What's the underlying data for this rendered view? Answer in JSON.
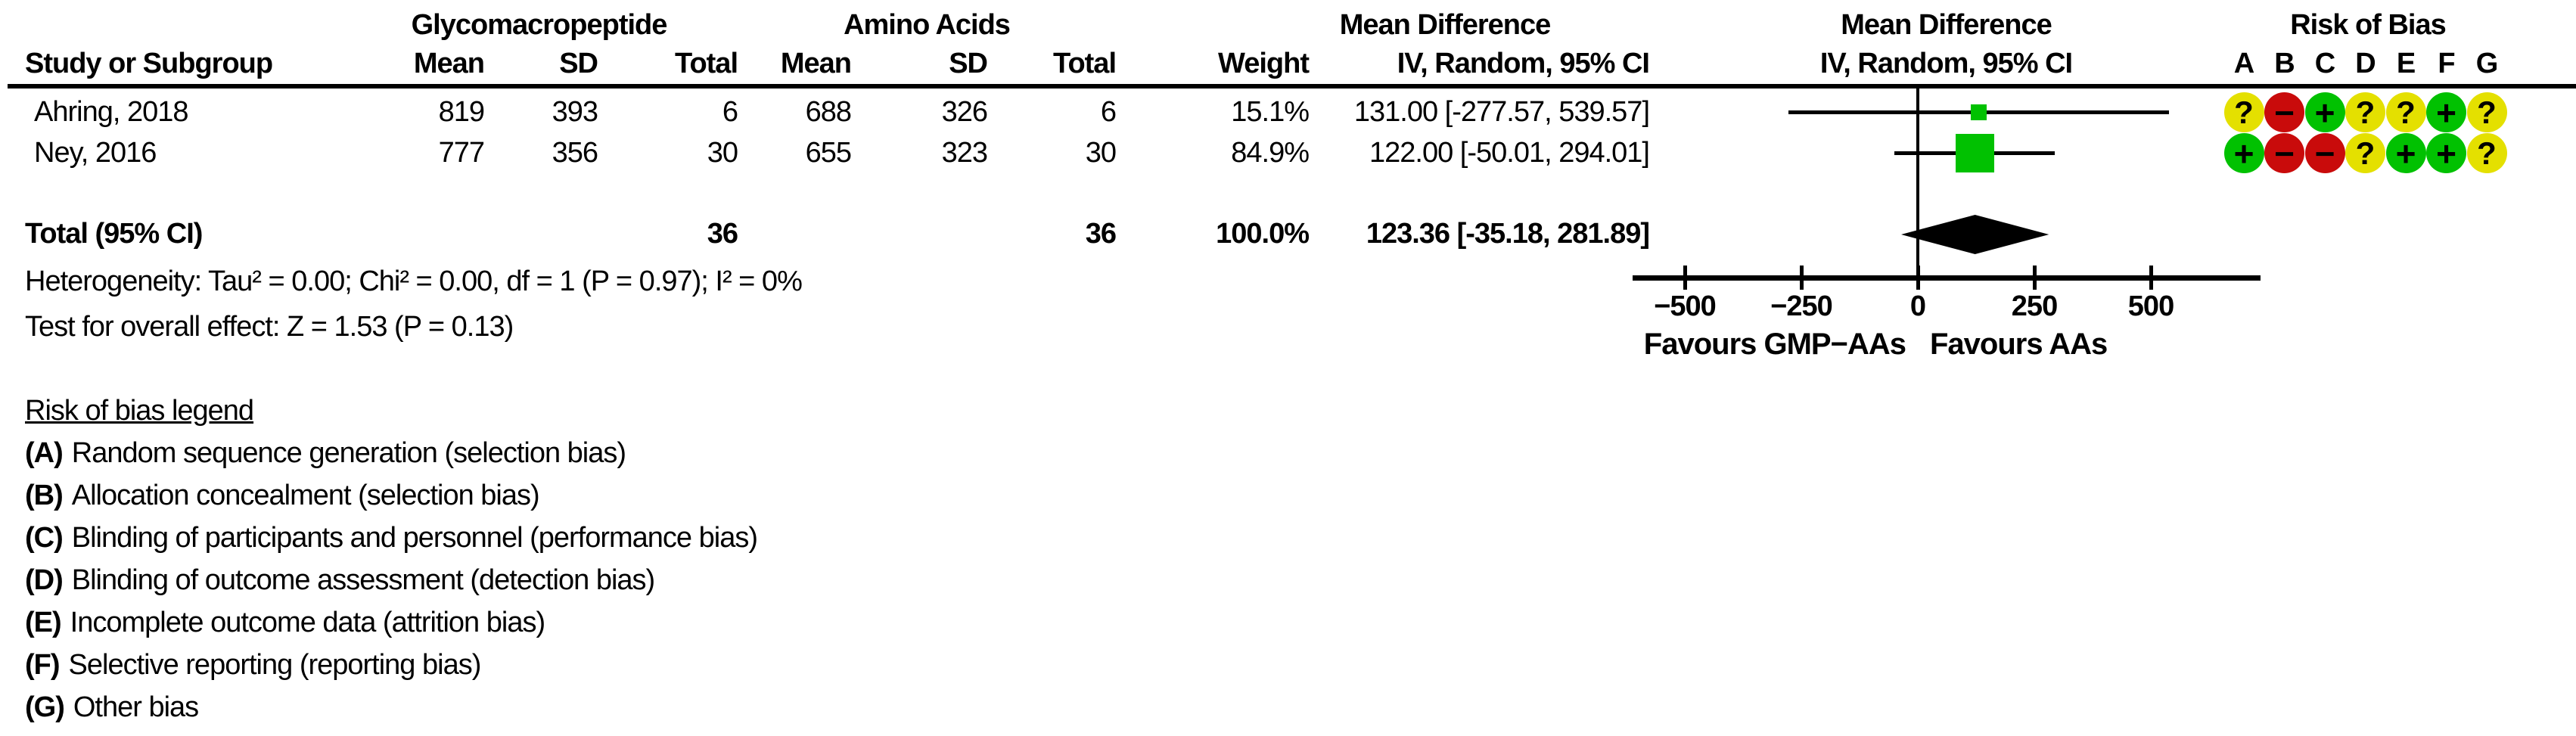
{
  "figure": {
    "colors": {
      "low_risk_green": "#01C101",
      "high_risk_red": "#C90B0B",
      "unclear_yellow": "#E4E000",
      "effect_square_green": "#01C101",
      "line_black": "#000000"
    }
  },
  "table": {
    "columns": {
      "study": "Study or Subgroup",
      "mean": "Mean",
      "sd": "SD",
      "total": "Total",
      "weight": "Weight",
      "ci": "IV, Random, 95% CI"
    },
    "group_headers": {
      "gmp": "Glycomacropeptide",
      "aa": "Amino Acids",
      "md_text": {
        "line1": "Mean Difference",
        "line2": "IV, Random, 95% CI"
      },
      "md_plot": {
        "line1": "Mean Difference",
        "line2": "IV, Random, 95% CI"
      },
      "rob_title": "Risk of Bias"
    },
    "rob_letters": [
      "A",
      "B",
      "C",
      "D",
      "E",
      "F",
      "G"
    ],
    "rows": [
      {
        "study": "Ahring, 2018",
        "gmp_mean": "819",
        "gmp_sd": "393",
        "gmp_total": "6",
        "aa_mean": "688",
        "aa_sd": "326",
        "aa_total": "6",
        "weight": "15.1%",
        "md_ci": "131.00 [-277.57, 539.57]",
        "rob": [
          "?",
          "-",
          "+",
          "?",
          "?",
          "+",
          "?"
        ]
      },
      {
        "study": "Ney, 2016",
        "gmp_mean": "777",
        "gmp_sd": "356",
        "gmp_total": "30",
        "aa_mean": "655",
        "aa_sd": "323",
        "aa_total": "30",
        "weight": "84.9%",
        "md_ci": "122.00 [-50.01, 294.01]",
        "rob": [
          "+",
          "-",
          "-",
          "?",
          "+",
          "+",
          "?"
        ]
      }
    ],
    "total_row": {
      "label": "Total (95% CI)",
      "gmp_total": "36",
      "aa_total": "36",
      "weight": "100.0%",
      "md_ci": "123.36 [-35.18, 281.89]"
    },
    "footnotes": {
      "heterogeneity": "Heterogeneity: Tau² = 0.00; Chi² = 0.00, df = 1 (P = 0.97); I² = 0%",
      "overall_effect": "Test for overall effect: Z = 1.53 (P = 0.13)"
    }
  },
  "chart_data": {
    "type": "forest",
    "effect_measure": "Mean Difference",
    "method": "IV, Random, 95% CI",
    "x_axis": {
      "ticks": [
        -500,
        -250,
        0,
        250,
        500
      ],
      "range": [
        -625,
        700
      ],
      "grid": false
    },
    "favours_left": "Favours GMP-AAs",
    "favours_right": "Favours AAs",
    "studies": [
      {
        "name": "Ahring, 2018",
        "md": 131.0,
        "ci_low": -277.57,
        "ci_high": 539.57,
        "weight_pct": 15.1
      },
      {
        "name": "Ney, 2016",
        "md": 122.0,
        "ci_low": -50.01,
        "ci_high": 294.01,
        "weight_pct": 84.9
      }
    ],
    "total": {
      "label": "Total (95% CI)",
      "md": 123.36,
      "ci_low": -35.18,
      "ci_high": 281.89,
      "weight_pct": 100.0
    }
  },
  "legend": {
    "title": "Risk of bias legend",
    "items": [
      {
        "letter": "(A)",
        "text": "Random sequence generation (selection bias)"
      },
      {
        "letter": "(B)",
        "text": "Allocation concealment (selection bias)"
      },
      {
        "letter": "(C)",
        "text": "Blinding of participants and personnel (performance bias)"
      },
      {
        "letter": "(D)",
        "text": "Blinding of outcome assessment (detection bias)"
      },
      {
        "letter": "(E)",
        "text": "Incomplete outcome data (attrition bias)"
      },
      {
        "letter": "(F)",
        "text": "Selective reporting (reporting bias)"
      },
      {
        "letter": "(G)",
        "text": "Other bias"
      }
    ]
  }
}
